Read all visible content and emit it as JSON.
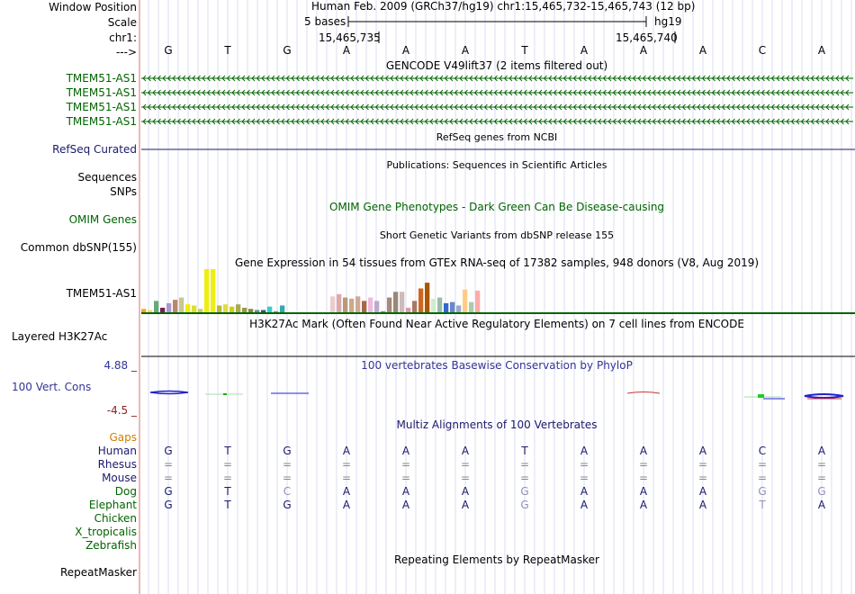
{
  "header": {
    "labels": {
      "window_position": "Window Position",
      "scale": "Scale",
      "chrom": "chr1:",
      "arrow": "--->"
    },
    "assembly_position": "Human Feb. 2009 (GRCh37/hg19)   chr1:15,465,732-15,465,743 (12 bp)",
    "scale_text": "5 bases",
    "scale_db": "hg19",
    "coord_left": "15,465,735",
    "coord_right": "15,465,740"
  },
  "reference_bases": [
    "G",
    "T",
    "G",
    "A",
    "A",
    "A",
    "T",
    "A",
    "A",
    "A",
    "C",
    "A"
  ],
  "tracks": {
    "gencode": {
      "title": "GENCODE V49lift37 (2 items filtered out)",
      "items": [
        "TMEM51-AS1",
        "TMEM51-AS1",
        "TMEM51-AS1",
        "TMEM51-AS1"
      ]
    },
    "refseq": {
      "label": "RefSeq Curated",
      "title": "RefSeq genes from NCBI"
    },
    "publications": {
      "title": "Publications: Sequences in Scientific Articles",
      "labels": [
        "Sequences",
        "SNPs"
      ]
    },
    "omim": {
      "label": "OMIM Genes",
      "title": "OMIM Gene Phenotypes - Dark Green Can Be Disease-causing"
    },
    "dbsnp": {
      "label": "Common dbSNP(155)",
      "title": "Short Genetic Variants from dbSNP release 155"
    },
    "gtex": {
      "title": "Gene Expression in 54 tissues from GTEx RNA-seq of 17382 samples, 948 donors (V8, Aug 2019)",
      "label": "TMEM51-AS1",
      "bar_values": [
        3,
        2,
        10,
        4,
        8,
        11,
        13,
        7,
        6,
        3,
        38,
        38,
        6,
        7,
        5,
        7,
        4,
        3,
        2,
        2,
        5,
        1,
        6,
        0,
        0,
        0,
        0,
        0,
        0,
        0,
        14,
        16,
        13,
        12,
        14,
        10,
        13,
        10,
        1,
        13,
        18,
        18,
        4,
        10,
        21,
        26,
        12,
        13,
        8,
        9,
        6,
        20,
        9,
        19
      ],
      "bar_colors": [
        "#FFAA00",
        "#FFD27F",
        "#66AA77",
        "#772255",
        "#AA99CC",
        "#BB8866",
        "#C8C890",
        "#EEEE00",
        "#DDDD33",
        "#CCCC66",
        "#EEEE11",
        "#EEEE11",
        "#BBBB33",
        "#DDDD44",
        "#CCCC22",
        "#AAAA55",
        "#999944",
        "#888833",
        "#6688AA",
        "#335577",
        "#33CCCC",
        "#7799AA",
        "#33AAAA",
        "#FFFFFF",
        "#FFFFFF",
        "#FFFFFF",
        "#FFFFFF",
        "#FFFFFF",
        "#FFFFFF",
        "#FFFFFF",
        "#EECCCC",
        "#DDAAAA",
        "#BB9977",
        "#CCAA88",
        "#CCAA99",
        "#AA6644",
        "#EEBBDD",
        "#BBAACC",
        "#888888",
        "#AA8877",
        "#998877",
        "#CCBBBB",
        "#DD99AA",
        "#AA7766",
        "#CC6622",
        "#AA5500",
        "#CCEECC",
        "#99BBAA",
        "#3366CC",
        "#6688CC",
        "#99AACC",
        "#FFCC88",
        "#AACCAA",
        "#FFAAAA"
      ]
    },
    "h3k27ac": {
      "label": "Layered H3K27Ac",
      "title": "H3K27Ac Mark (Often Found Near Active Regulatory Elements) on 7 cell lines from ENCODE"
    },
    "conservation": {
      "label": "100 Vert. Cons",
      "title": "100 vertebrates Basewise Conservation by PhyloP",
      "max": "4.88 _",
      "min": "-4.5 _"
    },
    "multiz": {
      "title": "Multiz Alignments of 100 Vertebrates",
      "gaps_label": "Gaps",
      "species": [
        {
          "name": "Human",
          "bases": [
            "G",
            "T",
            "G",
            "A",
            "A",
            "A",
            "T",
            "A",
            "A",
            "A",
            "C",
            "A"
          ]
        },
        {
          "name": "Rhesus",
          "bases": [
            "=",
            "=",
            "=",
            "=",
            "=",
            "=",
            "=",
            "=",
            "=",
            "=",
            "=",
            "="
          ]
        },
        {
          "name": "Mouse",
          "bases": [
            "=",
            "=",
            "=",
            "=",
            "=",
            "=",
            "=",
            "=",
            "=",
            "=",
            "=",
            "="
          ]
        },
        {
          "name": "Dog",
          "bases": [
            "G",
            "T",
            "C",
            "A",
            "A",
            "A",
            "G",
            "A",
            "A",
            "A",
            "G",
            "G"
          ]
        },
        {
          "name": "Elephant",
          "bases": [
            "G",
            "T",
            "G",
            "A",
            "A",
            "A",
            "G",
            "A",
            "A",
            "A",
            "T",
            "A"
          ]
        },
        {
          "name": "Chicken",
          "bases": []
        },
        {
          "name": "X_tropicalis",
          "bases": []
        },
        {
          "name": "Zebrafish",
          "bases": []
        }
      ],
      "mismatch_flags": [
        [
          0,
          0,
          0,
          0,
          0,
          0,
          0,
          0,
          0,
          0,
          0,
          0
        ],
        [
          0,
          0,
          0,
          0,
          0,
          0,
          0,
          0,
          0,
          0,
          0,
          0
        ],
        [
          0,
          0,
          0,
          0,
          0,
          0,
          0,
          0,
          0,
          0,
          0,
          0
        ],
        [
          0,
          0,
          1,
          0,
          0,
          0,
          1,
          0,
          0,
          0,
          1,
          1
        ],
        [
          0,
          0,
          0,
          0,
          0,
          0,
          1,
          0,
          0,
          0,
          1,
          0
        ],
        [],
        [],
        []
      ]
    },
    "repeatmasker": {
      "label": "RepeatMasker",
      "title": "Repeating Elements by RepeatMasker"
    }
  },
  "colors": {
    "gene_green": "#006400",
    "navy": "#1a1a6b",
    "gaps": "#d08000",
    "grid": "#c8c8e8",
    "side_bar": "#e8a0a0"
  }
}
